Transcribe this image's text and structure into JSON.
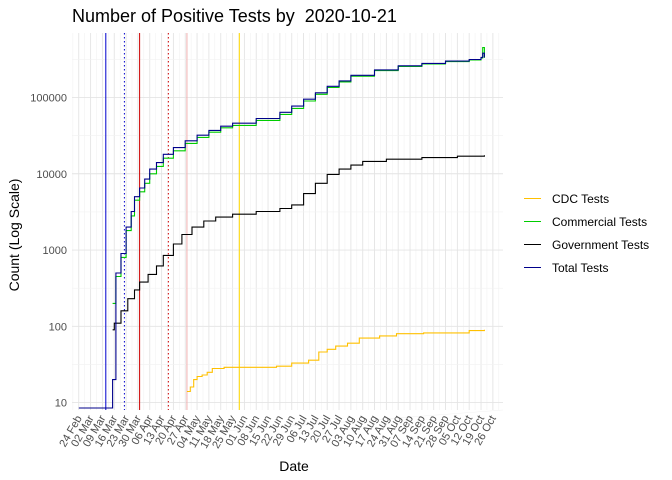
{
  "chart_data": {
    "type": "line",
    "title": "Number of Positive Tests by  2020-10-21",
    "xlabel": "Date",
    "ylabel": "Count (Log Scale)",
    "y_scale": "log10",
    "ylim": [
      8,
      700000
    ],
    "xlim": [
      "2020-02-20",
      "2020-11-01"
    ],
    "grid": true,
    "legend_position": "right",
    "y_ticks": [
      10,
      100,
      1000,
      10000,
      100000
    ],
    "y_tick_labels": [
      "10",
      "100",
      "1000",
      "10000",
      "100000"
    ],
    "x_ticks": [
      "2020-02-24",
      "2020-03-02",
      "2020-03-09",
      "2020-03-16",
      "2020-03-23",
      "2020-03-30",
      "2020-04-06",
      "2020-04-13",
      "2020-04-20",
      "2020-04-27",
      "2020-05-04",
      "2020-05-11",
      "2020-05-18",
      "2020-05-25",
      "2020-06-01",
      "2020-06-08",
      "2020-06-15",
      "2020-06-22",
      "2020-06-29",
      "2020-07-06",
      "2020-07-13",
      "2020-07-20",
      "2020-07-27",
      "2020-08-03",
      "2020-08-10",
      "2020-08-17",
      "2020-08-24",
      "2020-08-31",
      "2020-09-07",
      "2020-09-14",
      "2020-09-21",
      "2020-09-28",
      "2020-10-05",
      "2020-10-12",
      "2020-10-19",
      "2020-10-26"
    ],
    "x_tick_labels": [
      "24 Feb",
      "02 Mar",
      "09 Mar",
      "16 Mar",
      "23 Mar",
      "30 Mar",
      "06 Apr",
      "13 Apr",
      "20 Apr",
      "27 Apr",
      "04 May",
      "11 May",
      "18 May",
      "25 May",
      "01 Jun",
      "08 Jun",
      "15 Jun",
      "22 Jun",
      "29 Jun",
      "06 Jul",
      "13 Jul",
      "20 Jul",
      "27 Jul",
      "03 Aug",
      "10 Aug",
      "17 Aug",
      "24 Aug",
      "31 Aug",
      "07 Sep",
      "14 Sep",
      "21 Sep",
      "28 Sep",
      "05 Oct",
      "12 Oct",
      "19 Oct",
      "26 Oct"
    ],
    "reference_lines": [
      {
        "date": "2020-03-11",
        "color": "#0000cc",
        "style": "solid"
      },
      {
        "date": "2020-03-22",
        "color": "#0000cc",
        "style": "dotted"
      },
      {
        "date": "2020-03-31",
        "color": "#cc0000",
        "style": "solid"
      },
      {
        "date": "2020-04-17",
        "color": "#cc0000",
        "style": "dotted"
      },
      {
        "date": "2020-04-28",
        "color": "#f0b0b0",
        "style": "solid"
      },
      {
        "date": "2020-05-29",
        "color": "#ffd700",
        "style": "solid"
      }
    ],
    "series": [
      {
        "name": "CDC Tests",
        "color": "#ffc000",
        "x": [
          "2020-04-28",
          "2020-04-30",
          "2020-05-02",
          "2020-05-04",
          "2020-05-07",
          "2020-05-10",
          "2020-05-13",
          "2020-05-20",
          "2020-06-05",
          "2020-06-20",
          "2020-06-29",
          "2020-07-09",
          "2020-07-15",
          "2020-07-20",
          "2020-07-25",
          "2020-08-01",
          "2020-08-08",
          "2020-08-20",
          "2020-08-30",
          "2020-09-15",
          "2020-10-05",
          "2020-10-12",
          "2020-10-21"
        ],
        "y": [
          14,
          16,
          20,
          22,
          23,
          25,
          28,
          29,
          29,
          30,
          33,
          36,
          46,
          50,
          55,
          60,
          70,
          75,
          80,
          82,
          82,
          88,
          90
        ]
      },
      {
        "name": "Commercial Tests",
        "color": "#00cc00",
        "x": [
          "2020-03-15",
          "2020-03-17",
          "2020-03-20",
          "2020-03-23",
          "2020-03-26",
          "2020-03-28",
          "2020-03-31",
          "2020-04-03",
          "2020-04-06",
          "2020-04-10",
          "2020-04-14",
          "2020-04-20",
          "2020-04-27",
          "2020-05-04",
          "2020-05-11",
          "2020-05-18",
          "2020-05-25",
          "2020-06-08",
          "2020-06-22",
          "2020-06-29",
          "2020-07-06",
          "2020-07-13",
          "2020-07-20",
          "2020-07-27",
          "2020-08-03",
          "2020-08-17",
          "2020-08-31",
          "2020-09-14",
          "2020-09-28",
          "2020-10-12",
          "2020-10-19",
          "2020-10-20",
          "2020-10-21"
        ],
        "y": [
          200,
          450,
          800,
          1800,
          2800,
          4500,
          5800,
          7500,
          10000,
          12500,
          16000,
          20000,
          25000,
          30000,
          35000,
          40000,
          43000,
          50000,
          60000,
          72000,
          90000,
          110000,
          135000,
          160000,
          190000,
          225000,
          255000,
          275000,
          295000,
          310000,
          330000,
          450000,
          330000
        ]
      },
      {
        "name": "Government Tests",
        "color": "#000000",
        "x": [
          "2020-03-15",
          "2020-03-16",
          "2020-03-20",
          "2020-03-24",
          "2020-03-28",
          "2020-03-31",
          "2020-04-05",
          "2020-04-10",
          "2020-04-14",
          "2020-04-20",
          "2020-04-25",
          "2020-05-01",
          "2020-05-08",
          "2020-05-15",
          "2020-05-25",
          "2020-06-08",
          "2020-06-22",
          "2020-06-29",
          "2020-07-06",
          "2020-07-13",
          "2020-07-20",
          "2020-07-27",
          "2020-08-03",
          "2020-08-10",
          "2020-08-24",
          "2020-09-14",
          "2020-10-05",
          "2020-10-21"
        ],
        "y": [
          90,
          110,
          160,
          230,
          300,
          380,
          480,
          620,
          850,
          1200,
          1600,
          2000,
          2400,
          2700,
          2950,
          3200,
          3500,
          3900,
          5500,
          7500,
          9800,
          11500,
          13000,
          14500,
          15500,
          16300,
          17000,
          17500
        ]
      },
      {
        "name": "Total Tests",
        "color": "#00008b",
        "x": [
          "2020-02-24",
          "2020-03-14",
          "2020-03-15",
          "2020-03-17",
          "2020-03-20",
          "2020-03-23",
          "2020-03-26",
          "2020-03-28",
          "2020-03-31",
          "2020-04-03",
          "2020-04-06",
          "2020-04-10",
          "2020-04-14",
          "2020-04-20",
          "2020-04-27",
          "2020-05-04",
          "2020-05-11",
          "2020-05-18",
          "2020-05-25",
          "2020-06-08",
          "2020-06-22",
          "2020-06-29",
          "2020-07-06",
          "2020-07-13",
          "2020-07-20",
          "2020-07-27",
          "2020-08-03",
          "2020-08-17",
          "2020-08-31",
          "2020-09-14",
          "2020-09-28",
          "2020-10-12",
          "2020-10-19",
          "2020-10-20",
          "2020-10-21"
        ],
        "y": [
          8.5,
          8.5,
          20,
          500,
          900,
          2000,
          3200,
          5000,
          6500,
          8500,
          11500,
          14000,
          18000,
          22000,
          27000,
          32000,
          37000,
          42000,
          46000,
          53000,
          64000,
          77000,
          95000,
          115000,
          140000,
          165000,
          195000,
          230000,
          260000,
          280000,
          300000,
          315000,
          335000,
          380000,
          335000
        ]
      }
    ]
  }
}
